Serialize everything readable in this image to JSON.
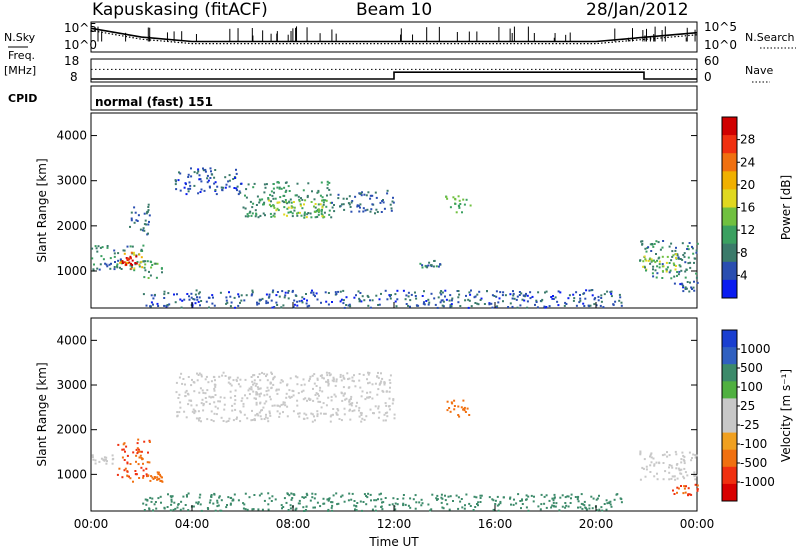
{
  "header": {
    "station": "Kapuskasing (fitACF)",
    "beam": "Beam 10",
    "date": "28/Jan/2012"
  },
  "colors": {
    "power_scale": [
      "#0a1cf0",
      "#2a4eb0",
      "#3a7a6a",
      "#3aa060",
      "#70c040",
      "#e0d820",
      "#f0b000",
      "#f07010",
      "#f03010",
      "#d00000"
    ],
    "velocity_scale": [
      "#1a3fd0",
      "#3060c0",
      "#3c8a6a",
      "#50b040",
      "#c8c8c8",
      "#c8c8c8",
      "#f0a020",
      "#f07010",
      "#f03010",
      "#d80000"
    ]
  },
  "chart_data": [
    {
      "type": "line",
      "panel": "noise",
      "ylabel_left": "N.Sky",
      "ylabel_right": "N.Search",
      "yticks_left": [
        "10^5",
        "10^0"
      ],
      "yticks_right": [
        "10^5",
        "10^0"
      ],
      "ylog": true,
      "series": [
        {
          "name": "N.Sky",
          "style": "solid",
          "x": [
            0,
            2,
            4,
            6,
            8,
            10,
            12,
            14,
            16,
            18,
            20,
            22,
            24
          ],
          "y": [
            30000,
            300,
            30,
            30,
            30,
            30,
            30,
            30,
            30,
            30,
            30,
            300,
            3000
          ]
        },
        {
          "name": "N.Search",
          "style": "dotted",
          "x": [
            0,
            2,
            4,
            6,
            8,
            10,
            12,
            14,
            16,
            18,
            20,
            22,
            24
          ],
          "y": [
            10000,
            100,
            10,
            10,
            10,
            10,
            10,
            10,
            10,
            10,
            10,
            100,
            1000
          ]
        }
      ]
    },
    {
      "type": "line",
      "panel": "frequency",
      "ylabel_left": "Freq.",
      "ylabel_left_unit": "[MHz]",
      "ylabel_right": "Nave",
      "yticks_left": [
        "18",
        "8"
      ],
      "yticks_right": [
        "60",
        "0"
      ],
      "series": [
        {
          "name": "Freq.",
          "style": "solid",
          "x": [
            0,
            12,
            12,
            21.9,
            21.9,
            24
          ],
          "y": [
            8,
            8,
            12,
            12,
            8,
            8
          ]
        },
        {
          "name": "Nave",
          "style": "dotted",
          "x": [
            0,
            24
          ],
          "y": [
            34,
            34
          ]
        }
      ]
    },
    {
      "type": "text",
      "panel": "cpid",
      "label": "CPID",
      "value": "normal (fast) 151"
    },
    {
      "type": "heatmap",
      "panel": "power",
      "ylabel": "Slant Range [km]",
      "ylim": [
        180,
        4500
      ],
      "yticks": [
        1000,
        2000,
        3000,
        4000
      ],
      "xlim": [
        0,
        24
      ],
      "colorbar": {
        "label": "Power [dB]",
        "ticks": [
          4,
          8,
          12,
          16,
          20,
          24,
          28
        ],
        "range": [
          0,
          30
        ]
      },
      "regions": [
        {
          "x": [
            0,
            2.2
          ],
          "y": [
            1000,
            1600
          ],
          "value": 8
        },
        {
          "x": [
            1,
            2
          ],
          "y": [
            1050,
            1450
          ],
          "value": 20
        },
        {
          "x": [
            1.2,
            1.8
          ],
          "y": [
            1150,
            1350
          ],
          "value": 28
        },
        {
          "x": [
            2,
            2.8
          ],
          "y": [
            850,
            1250
          ],
          "value": 10
        },
        {
          "x": [
            1.5,
            2.3
          ],
          "y": [
            1800,
            2500
          ],
          "value": 6
        },
        {
          "x": [
            3.3,
            6
          ],
          "y": [
            2700,
            3300
          ],
          "value": 5
        },
        {
          "x": [
            6,
            9.5
          ],
          "y": [
            2200,
            3000
          ],
          "value": 9
        },
        {
          "x": [
            7,
            9.5
          ],
          "y": [
            2200,
            2600
          ],
          "value": 14
        },
        {
          "x": [
            9.5,
            12
          ],
          "y": [
            2300,
            2800
          ],
          "value": 6
        },
        {
          "x": [
            14,
            15
          ],
          "y": [
            2300,
            2700
          ],
          "value": 12
        },
        {
          "x": [
            13,
            14
          ],
          "y": [
            1100,
            1250
          ],
          "value": 7
        },
        {
          "x": [
            21.7,
            24
          ],
          "y": [
            850,
            1700
          ],
          "value": 8
        },
        {
          "x": [
            21.8,
            23.2
          ],
          "y": [
            1000,
            1400
          ],
          "value": 14
        },
        {
          "x": [
            23,
            24
          ],
          "y": [
            550,
            800
          ],
          "value": 5
        },
        {
          "x": [
            2,
            21
          ],
          "y": [
            200,
            600
          ],
          "value": 5
        }
      ]
    },
    {
      "type": "heatmap",
      "panel": "velocity",
      "ylabel": "Slant Range [km]",
      "xlabel": "Time UT",
      "ylim": [
        180,
        4500
      ],
      "yticks": [
        1000,
        2000,
        3000,
        4000
      ],
      "xlim": [
        0,
        24
      ],
      "xticks": [
        "00:00",
        "04:00",
        "08:00",
        "12:00",
        "16:00",
        "20:00",
        "00:00"
      ],
      "colorbar": {
        "label": "Velocity [m s⁻¹]",
        "ticks": [
          1000,
          500,
          100,
          25,
          -25,
          -100,
          -500,
          -1000
        ]
      },
      "regions": [
        {
          "x": [
            0,
            1
          ],
          "y": [
            1250,
            1450
          ],
          "value": 0
        },
        {
          "x": [
            1,
            2.3
          ],
          "y": [
            850,
            1800
          ],
          "value": -300
        },
        {
          "x": [
            2.2,
            2.8
          ],
          "y": [
            850,
            1100
          ],
          "value": -200
        },
        {
          "x": [
            3.3,
            12
          ],
          "y": [
            2200,
            3300
          ],
          "value": 0
        },
        {
          "x": [
            14,
            15
          ],
          "y": [
            2300,
            2700
          ],
          "value": -200
        },
        {
          "x": [
            21.7,
            24
          ],
          "y": [
            900,
            1600
          ],
          "value": 0
        },
        {
          "x": [
            23,
            24
          ],
          "y": [
            550,
            800
          ],
          "value": -300
        },
        {
          "x": [
            2,
            21
          ],
          "y": [
            200,
            600
          ],
          "value": 100
        }
      ]
    }
  ]
}
